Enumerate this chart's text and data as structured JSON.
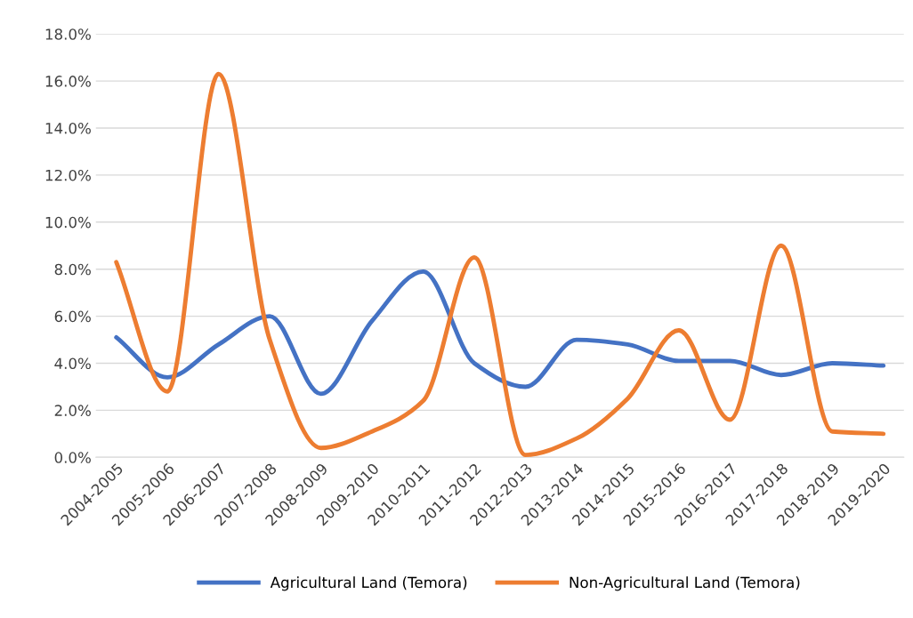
{
  "chart_data": {
    "type": "line",
    "categories": [
      "2004-2005",
      "2005-2006",
      "2006-2007",
      "2007-2008",
      "2008-2009",
      "2009-2010",
      "2010-2011",
      "2011-2012",
      "2012-2013",
      "2013-2014",
      "2014-2015",
      "2015-2016",
      "2016-2017",
      "2017-2018",
      "2018-2019",
      "2019-2020"
    ],
    "series": [
      {
        "name": "Agricultural Land (Temora)",
        "color": "#4472c4",
        "values": [
          5.1,
          3.4,
          4.8,
          6.0,
          2.7,
          5.8,
          7.9,
          4.0,
          3.0,
          5.0,
          4.8,
          4.1,
          4.1,
          3.5,
          4.0,
          3.9
        ]
      },
      {
        "name": "Non-Agricultural Land (Temora)",
        "color": "#ed7d31",
        "values": [
          8.3,
          2.8,
          16.3,
          5.0,
          0.4,
          1.1,
          2.4,
          8.5,
          0.1,
          0.8,
          2.5,
          5.4,
          1.6,
          9.0,
          1.1,
          1.0
        ]
      }
    ],
    "ylim": [
      0,
      18
    ],
    "yticks": [
      {
        "value": 0,
        "label": "0.0%"
      },
      {
        "value": 2,
        "label": "2.0%"
      },
      {
        "value": 4,
        "label": "4.0%"
      },
      {
        "value": 6,
        "label": "6.0%"
      },
      {
        "value": 8,
        "label": "8.0%"
      },
      {
        "value": 10,
        "label": "10.0%"
      },
      {
        "value": 12,
        "label": "12.0%"
      },
      {
        "value": 14,
        "label": "14.0%"
      },
      {
        "value": 16,
        "label": "16.0%"
      },
      {
        "value": 18,
        "label": "18.0%"
      }
    ],
    "grid": "y",
    "legend": "bottom",
    "marker": "none",
    "line_style": "solid"
  }
}
